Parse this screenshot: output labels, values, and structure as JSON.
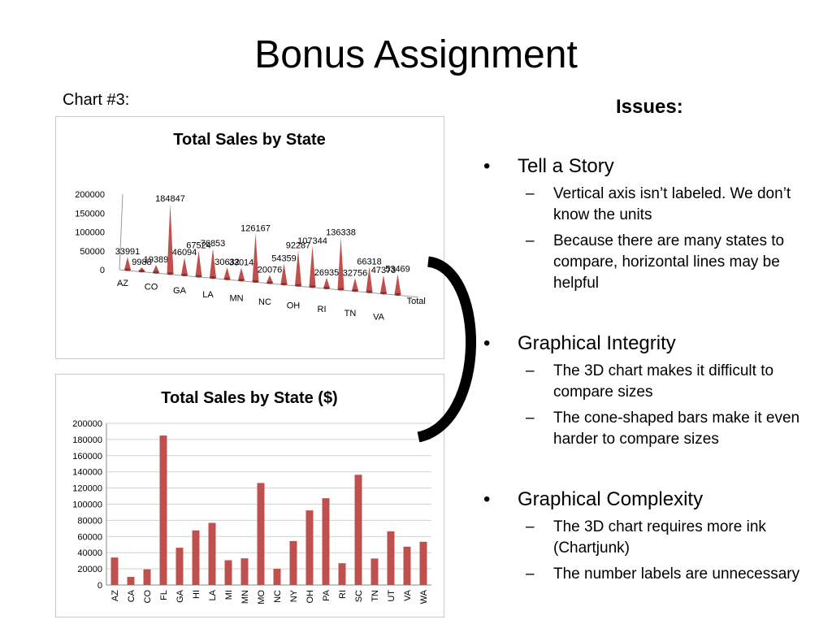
{
  "slide": {
    "title": "Bonus Assignment",
    "chart_label": "Chart #3:"
  },
  "issues": {
    "title": "Issues:",
    "items": [
      {
        "heading": "Tell a Story",
        "points": [
          "Vertical axis isn’t labeled. We don’t know the units",
          "Because there are many states to compare, horizontal lines may be helpful"
        ]
      },
      {
        "heading": "Graphical Integrity",
        "points": [
          "The 3D chart makes it difficult to compare sizes",
          "The cone-shaped bars make it even harder to compare sizes"
        ]
      },
      {
        "heading": "Graphical Complexity",
        "points": [
          "The 3D chart requires more ink (Chartjunk)",
          "The number labels are unnecessary"
        ]
      }
    ]
  },
  "colors": {
    "bar": "#c0504d",
    "bar_dark": "#8f2f2c",
    "grid": "#d0d0d0",
    "bracket": "#000000"
  },
  "chart_data": [
    {
      "type": "bar",
      "style": "3d-cone",
      "title": "Total Sales by State",
      "categories": [
        "AZ",
        "CA",
        "CO",
        "FL",
        "GA",
        "HI",
        "LA",
        "MI",
        "MN",
        "MO",
        "NC",
        "NY",
        "OH",
        "PA",
        "RI",
        "SC",
        "TN",
        "UT",
        "VA",
        "WA"
      ],
      "values": [
        33991,
        9988,
        19389,
        184847,
        46094,
        67524,
        76853,
        30632,
        33014,
        126167,
        20076,
        54359,
        92287,
        107344,
        26935,
        136338,
        32756,
        66318,
        47373,
        53469
      ],
      "labeled_categories": [
        "AZ",
        "CO",
        "GA",
        "LA",
        "MN",
        "NC",
        "OH",
        "RI",
        "TN",
        "VA"
      ],
      "extra_axis_label": "Total",
      "yticks": [
        0,
        50000,
        100000,
        150000,
        200000
      ],
      "ylim": [
        0,
        200000
      ],
      "data_labels": true,
      "grid": false
    },
    {
      "type": "bar",
      "title": "Total Sales by State ($)",
      "categories": [
        "AZ",
        "CA",
        "CO",
        "FL",
        "GA",
        "HI",
        "LA",
        "MI",
        "MN",
        "MO",
        "NC",
        "NY",
        "OH",
        "PA",
        "RI",
        "SC",
        "TN",
        "UT",
        "VA",
        "WA"
      ],
      "values": [
        33991,
        9988,
        19389,
        184847,
        46094,
        67524,
        76853,
        30632,
        33014,
        126167,
        20076,
        54359,
        92287,
        107344,
        26935,
        136338,
        32756,
        66318,
        47373,
        53469
      ],
      "yticks": [
        0,
        20000,
        40000,
        60000,
        80000,
        100000,
        120000,
        140000,
        160000,
        180000,
        200000
      ],
      "ylim": [
        0,
        200000
      ],
      "data_labels": false,
      "grid": true
    }
  ]
}
